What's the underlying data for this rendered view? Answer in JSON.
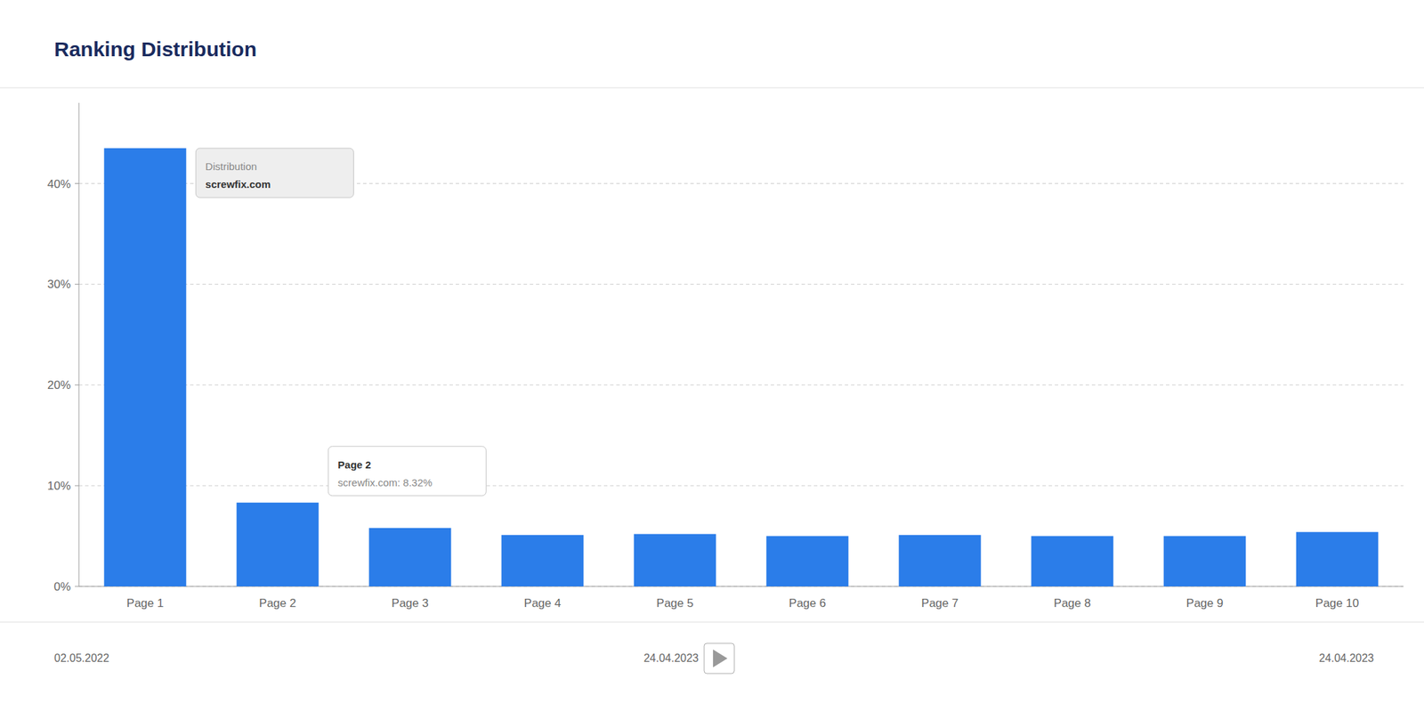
{
  "chart_data": {
    "type": "bar",
    "title": "Ranking Distribution",
    "categories": [
      "Page 1",
      "Page 2",
      "Page 3",
      "Page 4",
      "Page 5",
      "Page 6",
      "Page 7",
      "Page 8",
      "Page 9",
      "Page 10"
    ],
    "values": [
      43.5,
      8.32,
      5.8,
      5.1,
      5.2,
      5.0,
      5.1,
      5.0,
      5.0,
      5.4
    ],
    "color": "#2b7de9",
    "ylim": [
      0,
      48
    ],
    "yticks": [
      {
        "value": 0,
        "label": "0%"
      },
      {
        "value": 10,
        "label": "10%"
      },
      {
        "value": 20,
        "label": "20%"
      },
      {
        "value": 30,
        "label": "30%"
      },
      {
        "value": 40,
        "label": "40%"
      }
    ],
    "grid": true,
    "annotations": [
      [
        "Distribution",
        "screwfix.com"
      ],
      [
        "Page 2",
        "screwfix.com: 8.32%"
      ]
    ],
    "footer": [
      "02.05.2022",
      "24.04.2023",
      "24.04.2023"
    ]
  }
}
